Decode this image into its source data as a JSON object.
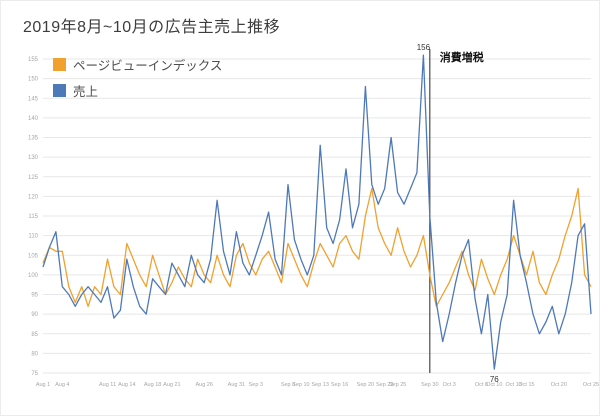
{
  "title": "2019年8月~10月の広告主売上推移",
  "legend": [
    {
      "label": "ページビューインデックス"
    },
    {
      "label": "売上"
    }
  ],
  "chart_data": {
    "type": "line",
    "title": "2019年8月~10月の広告主売上推移",
    "ylabel": "",
    "xlabel": "",
    "ylim": [
      75,
      155
    ],
    "y_step": 5,
    "grid": "horizontal-only",
    "legend_position": "top-left-inside",
    "x_ticks": [
      {
        "label": "Aug 1",
        "i": 0
      },
      {
        "label": "Aug 4",
        "i": 3
      },
      {
        "label": "Aug 11",
        "i": 10
      },
      {
        "label": "Aug 14",
        "i": 13
      },
      {
        "label": "Aug 18",
        "i": 17
      },
      {
        "label": "Aug 21",
        "i": 20
      },
      {
        "label": "Aug 26",
        "i": 25
      },
      {
        "label": "Aug 31",
        "i": 30
      },
      {
        "label": "Sep 3",
        "i": 33
      },
      {
        "label": "Sep 8",
        "i": 38
      },
      {
        "label": "Sep 10",
        "i": 40
      },
      {
        "label": "Sep 13",
        "i": 43
      },
      {
        "label": "Sep 16",
        "i": 46
      },
      {
        "label": "Sep 20",
        "i": 50
      },
      {
        "label": "Sep 23",
        "i": 53
      },
      {
        "label": "Sep 25",
        "i": 55
      },
      {
        "label": "Sep 30",
        "i": 60
      },
      {
        "label": "Oct 3",
        "i": 63
      },
      {
        "label": "Oct 8",
        "i": 68
      },
      {
        "label": "Oct 10",
        "i": 70
      },
      {
        "label": "Oct 13",
        "i": 73
      },
      {
        "label": "Oct 15",
        "i": 75
      },
      {
        "label": "Oct 20",
        "i": 80
      },
      {
        "label": "Oct 25",
        "i": 85
      }
    ],
    "series": [
      {
        "id": "pageview-index",
        "name": "ページビューインデックス",
        "color": "#F0A12E",
        "values": [
          103,
          107,
          106,
          106,
          97,
          93,
          97,
          92,
          97,
          95,
          104,
          97,
          95,
          108,
          104,
          100,
          97,
          105,
          100,
          95,
          98,
          102,
          99,
          97,
          104,
          100,
          98,
          105,
          100,
          97,
          105,
          108,
          103,
          100,
          104,
          106,
          102,
          98,
          108,
          104,
          100,
          97,
          103,
          108,
          105,
          102,
          108,
          110,
          106,
          104,
          115,
          122,
          112,
          108,
          105,
          112,
          106,
          102,
          105,
          110,
          100,
          92,
          95,
          98,
          102,
          106,
          100,
          96,
          104,
          99,
          95,
          100,
          104,
          110,
          105,
          100,
          106,
          98,
          95,
          100,
          104,
          110,
          115,
          122,
          100,
          97
        ]
      },
      {
        "id": "sales",
        "name": "売上",
        "color": "#4E79B8",
        "values": [
          102,
          107,
          111,
          97,
          95,
          92,
          95,
          97,
          95,
          93,
          97,
          89,
          91,
          104,
          97,
          92,
          90,
          99,
          97,
          95,
          103,
          100,
          97,
          105,
          100,
          98,
          104,
          119,
          106,
          100,
          111,
          103,
          100,
          105,
          110,
          116,
          104,
          100,
          123,
          109,
          104,
          100,
          105,
          133,
          112,
          108,
          114,
          127,
          112,
          118,
          148,
          123,
          118,
          122,
          135,
          121,
          118,
          122,
          126,
          156,
          115,
          93,
          83,
          90,
          98,
          105,
          109,
          94,
          85,
          95,
          76,
          88,
          95,
          119,
          105,
          98,
          90,
          85,
          88,
          92,
          85,
          90,
          98,
          110,
          113,
          90
        ]
      }
    ],
    "event": {
      "i": 60,
      "label": "消費増税",
      "x_label": "Sep 30"
    },
    "annotations": [
      {
        "text": "156",
        "i": 59,
        "v": 156,
        "dy": -5
      },
      {
        "text": "76",
        "i": 70,
        "v": 76,
        "dy": 13
      }
    ]
  }
}
